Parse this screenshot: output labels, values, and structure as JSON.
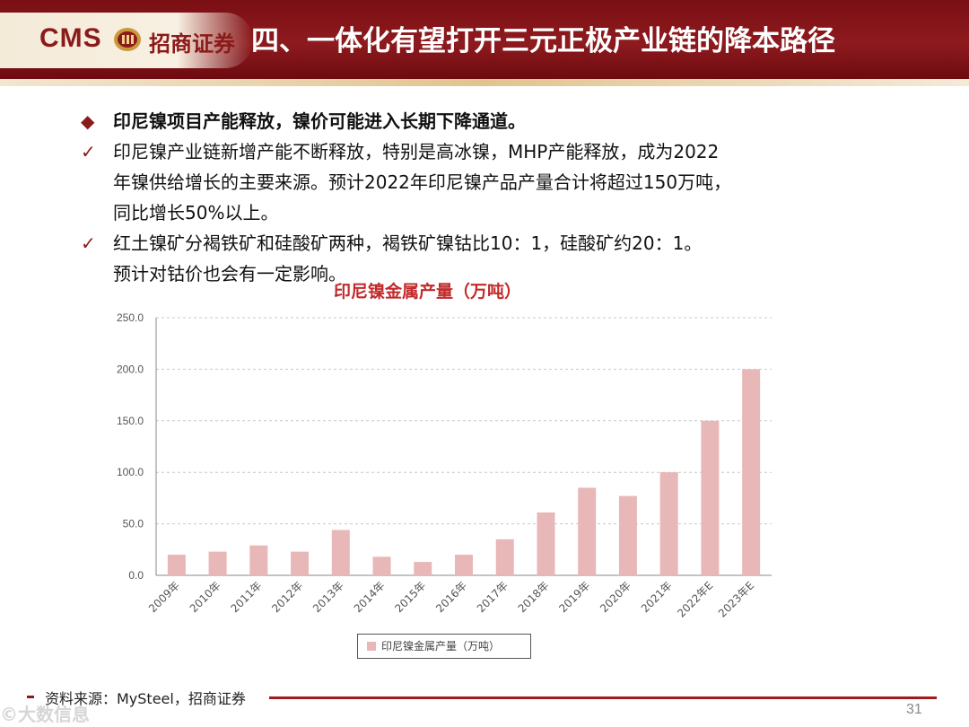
{
  "header": {
    "logo_cms": "CMS",
    "logo_cn": "招商证券",
    "title": "四、一体化有望打开三元正极产业链的降本路径",
    "background_color": "#7a0f14"
  },
  "bullets": {
    "lines": [
      {
        "marker": "◆",
        "text": "印尼镍项目产能释放，镍价可能进入长期下降通道。"
      },
      {
        "marker": "✓",
        "text": "印尼镍产业链新增产能不断释放，特别是高冰镍，MHP产能释放，成为2022"
      },
      {
        "marker": "",
        "text": "年镍供给增长的主要来源。预计2022年印尼镍产品产量合计将超过150万吨，"
      },
      {
        "marker": "",
        "text": "同比增长50%以上。"
      },
      {
        "marker": "✓",
        "text": "红土镍矿分褐铁矿和硅酸矿两种，褐铁矿镍钴比10：1，硅酸矿约20：1。"
      },
      {
        "marker": "",
        "text": "预计对钴价也会有一定影响。"
      }
    ]
  },
  "chart_title": "印尼镍金属产量（万吨）",
  "chart_data": {
    "type": "bar",
    "categories": [
      "2009年",
      "2010年",
      "2011年",
      "2012年",
      "2013年",
      "2014年",
      "2015年",
      "2016年",
      "2017年",
      "2018年",
      "2019年",
      "2020年",
      "2021年",
      "2022年E",
      "2023年E"
    ],
    "series": [
      {
        "name": "印尼镍金属产量（万吨）",
        "values": [
          20,
          23,
          29,
          23,
          44,
          18,
          13,
          20,
          35,
          61,
          85,
          77,
          100,
          150,
          200
        ]
      }
    ],
    "y_ticks": [
      "0.0",
      "50.0",
      "100.0",
      "150.0",
      "200.0",
      "250.0"
    ],
    "ylim": [
      0,
      250
    ],
    "grid": true,
    "legend_position": "bottom",
    "bar_color": "#e8b7b7"
  },
  "footer": {
    "source": "资料来源：MySteel，招商证券",
    "page_number": "31",
    "watermark": "©大数信息",
    "rule_color": "#a01c1c"
  }
}
